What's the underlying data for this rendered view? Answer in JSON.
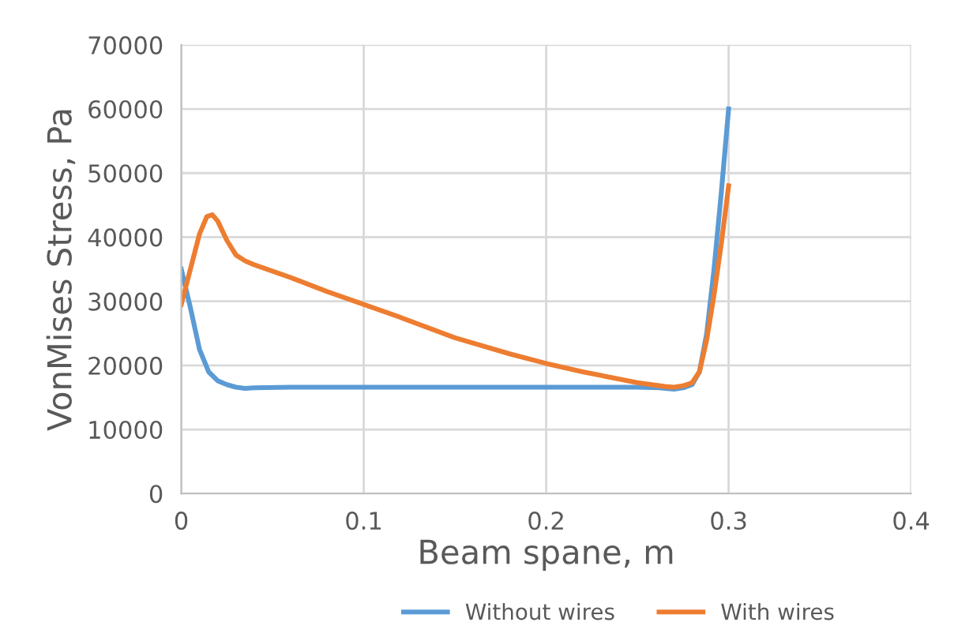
{
  "chart_data": {
    "type": "line",
    "xlabel": "Beam spane, m",
    "ylabel": "VonMises Stress, Pa",
    "xlim": [
      0,
      0.4
    ],
    "ylim": [
      0,
      70000
    ],
    "xticks": [
      0,
      0.1,
      0.2,
      0.3,
      0.4
    ],
    "yticks": [
      0,
      10000,
      20000,
      30000,
      40000,
      50000,
      60000,
      70000
    ],
    "grid": true,
    "legend": "bottom",
    "marker": "none",
    "line_style": "solid",
    "series": [
      {
        "name": "Without wires",
        "color": "#5b9bd5",
        "x": [
          0,
          0.005,
          0.01,
          0.015,
          0.02,
          0.025,
          0.03,
          0.035,
          0.04,
          0.06,
          0.1,
          0.15,
          0.2,
          0.25,
          0.262,
          0.27,
          0.275,
          0.28,
          0.284,
          0.288,
          0.292,
          0.296,
          0.3
        ],
        "values": [
          35000,
          29000,
          22500,
          19000,
          17600,
          17000,
          16600,
          16400,
          16500,
          16600,
          16600,
          16600,
          16600,
          16600,
          16500,
          16300,
          16500,
          17000,
          19000,
          25000,
          35000,
          47000,
          60000
        ]
      },
      {
        "name": "With wires",
        "color": "#ed7d31",
        "x": [
          0,
          0.005,
          0.01,
          0.014,
          0.017,
          0.02,
          0.025,
          0.03,
          0.035,
          0.04,
          0.06,
          0.08,
          0.1,
          0.12,
          0.15,
          0.18,
          0.2,
          0.22,
          0.25,
          0.265,
          0.27,
          0.275,
          0.28,
          0.284,
          0.288,
          0.292,
          0.296,
          0.3
        ],
        "values": [
          29500,
          35000,
          40500,
          43200,
          43500,
          42500,
          39500,
          37200,
          36300,
          35700,
          33700,
          31500,
          29500,
          27500,
          24300,
          21800,
          20300,
          19000,
          17300,
          16700,
          16600,
          16800,
          17300,
          19000,
          24000,
          31000,
          39000,
          48000
        ]
      }
    ]
  }
}
